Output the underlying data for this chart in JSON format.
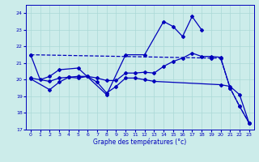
{
  "background_color": "#ccecea",
  "grid_color": "#aad8d6",
  "line_color": "#0000bb",
  "title": "Graphe des températures (°c)",
  "xlim": [
    -0.5,
    23.5
  ],
  "ylim": [
    17,
    24.5
  ],
  "yticks": [
    17,
    18,
    19,
    20,
    21,
    22,
    23,
    24
  ],
  "xticks": [
    0,
    1,
    2,
    3,
    4,
    5,
    6,
    7,
    8,
    9,
    10,
    11,
    12,
    13,
    14,
    15,
    16,
    17,
    18,
    19,
    20,
    21,
    22,
    23
  ],
  "series1_x": [
    0,
    1,
    2,
    3,
    5,
    8,
    10,
    12,
    14,
    15,
    16,
    17,
    18
  ],
  "series1_y": [
    21.5,
    20.0,
    20.2,
    20.6,
    20.7,
    19.1,
    21.5,
    21.5,
    23.5,
    23.2,
    22.6,
    23.8,
    23.0
  ],
  "series2_x": [
    0,
    19,
    20,
    21,
    22,
    23
  ],
  "series2_y": [
    21.5,
    21.3,
    21.3,
    19.5,
    18.4,
    17.4
  ],
  "series3_x": [
    0,
    2,
    3,
    4,
    5,
    6,
    7,
    8,
    9,
    10,
    11,
    12,
    13,
    20,
    21,
    22,
    23
  ],
  "series3_y": [
    20.05,
    19.4,
    19.85,
    20.15,
    20.1,
    20.2,
    19.85,
    19.2,
    19.6,
    20.1,
    20.1,
    20.0,
    19.9,
    19.7,
    19.6,
    19.1,
    17.4
  ],
  "series4_x": [
    0,
    2,
    3,
    4,
    5,
    6,
    7,
    8,
    9,
    10,
    11,
    12,
    13,
    14,
    15,
    16,
    17,
    18,
    19,
    20,
    21,
    22,
    23
  ],
  "series4_y": [
    20.1,
    19.9,
    20.1,
    20.15,
    20.2,
    20.2,
    20.1,
    19.95,
    19.95,
    20.4,
    20.4,
    20.45,
    20.4,
    20.8,
    21.1,
    21.3,
    21.6,
    21.4,
    21.4,
    21.35,
    19.5,
    18.4,
    17.4
  ]
}
